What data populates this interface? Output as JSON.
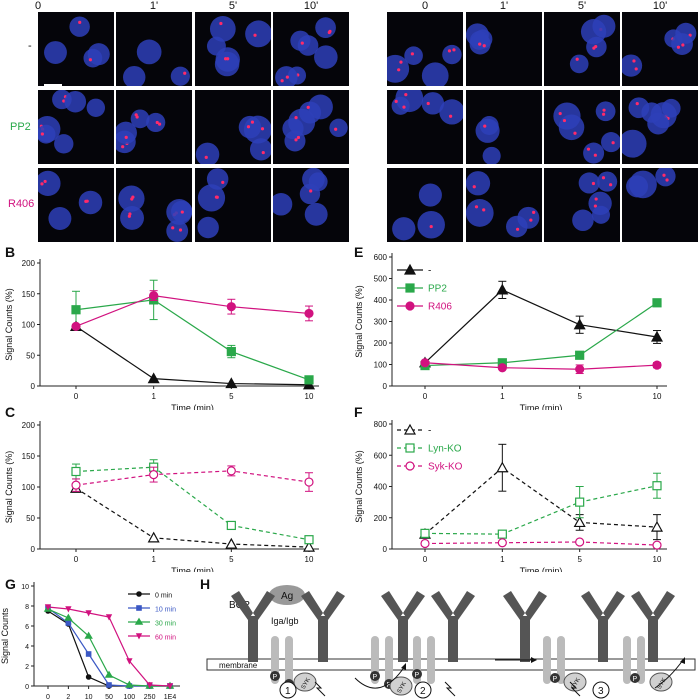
{
  "micrograph": {
    "left": {
      "columns": [
        "0",
        "1'",
        "5'",
        "10'"
      ],
      "rows": [
        {
          "label": "-",
          "color": "#111111"
        },
        {
          "label": "PP2",
          "color": "#2aa84a"
        },
        {
          "label": "R406",
          "color": "#d1127f"
        }
      ]
    },
    "right": {
      "columns": [
        "0",
        "1'",
        "5'",
        "10'"
      ]
    }
  },
  "colors": {
    "black": "#111111",
    "green": "#2aa84a",
    "magenta": "#d1127f",
    "blue": "#3b58c4"
  },
  "panels": {
    "B": "B",
    "C": "C",
    "E": "E",
    "F": "F",
    "G": "G",
    "H": "H"
  },
  "chart_data": [
    {
      "id": "B",
      "type": "line",
      "xlabel": "Time (min)",
      "ylabel": "Signal Counts (%)",
      "categories": [
        "0",
        "1",
        "5",
        "10"
      ],
      "ylim": [
        0,
        200
      ],
      "yticks": [
        "0",
        "50",
        "100",
        "150",
        "200"
      ],
      "series": [
        {
          "values": [
            97,
            12,
            4,
            2
          ],
          "color": "#111111",
          "marker": "triangle-filled",
          "dashed": false,
          "err": [
            0,
            0,
            0,
            0
          ]
        },
        {
          "values": [
            124,
            140,
            56,
            10
          ],
          "color": "#2aa84a",
          "marker": "square-filled",
          "dashed": false,
          "err": [
            30,
            32,
            10,
            3
          ]
        },
        {
          "values": [
            97,
            147,
            129,
            118
          ],
          "color": "#d1127f",
          "marker": "circle-filled",
          "dashed": false,
          "err": [
            3,
            8,
            12,
            12
          ]
        }
      ]
    },
    {
      "id": "C",
      "type": "line",
      "xlabel": "Time (min)",
      "ylabel": "Signal Counts (%)",
      "categories": [
        "0",
        "1",
        "5",
        "10"
      ],
      "ylim": [
        0,
        200
      ],
      "yticks": [
        "0",
        "50",
        "100",
        "150",
        "200"
      ],
      "series": [
        {
          "values": [
            98,
            18,
            8,
            3
          ],
          "color": "#111111",
          "marker": "triangle-open",
          "dashed": true,
          "err": [
            5,
            0,
            0,
            0
          ]
        },
        {
          "values": [
            125,
            132,
            38,
            15
          ],
          "color": "#2aa84a",
          "marker": "square-open",
          "dashed": true,
          "err": [
            12,
            12,
            0,
            0
          ]
        },
        {
          "values": [
            103,
            120,
            126,
            108
          ],
          "color": "#d1127f",
          "marker": "circle-open",
          "dashed": true,
          "err": [
            10,
            12,
            8,
            15
          ]
        }
      ]
    },
    {
      "id": "E",
      "type": "line",
      "xlabel": "Time (min)",
      "ylabel": "Signal Counts (%)",
      "categories": [
        "0",
        "1",
        "5",
        "10"
      ],
      "ylim": [
        0,
        600
      ],
      "yticks": [
        "0",
        "100",
        "200",
        "300",
        "400",
        "500",
        "600"
      ],
      "legend": [
        "-",
        "PP2",
        "R406"
      ],
      "series": [
        {
          "name": "-",
          "values": [
            108,
            447,
            285,
            228
          ],
          "color": "#111111",
          "marker": "triangle-filled",
          "dashed": false,
          "err": [
            0,
            40,
            40,
            30
          ]
        },
        {
          "name": "PP2",
          "values": [
            95,
            108,
            143,
            387
          ],
          "color": "#2aa84a",
          "marker": "square-filled",
          "dashed": false,
          "err": [
            0,
            0,
            0,
            0
          ]
        },
        {
          "name": "R406",
          "values": [
            108,
            85,
            78,
            97
          ],
          "color": "#d1127f",
          "marker": "circle-filled",
          "dashed": false,
          "err": [
            0,
            0,
            20,
            12
          ]
        }
      ]
    },
    {
      "id": "F",
      "type": "line",
      "xlabel": "Time (min)",
      "ylabel": "Signal Counts (%)",
      "categories": [
        "0",
        "1",
        "5",
        "10"
      ],
      "ylim": [
        0,
        800
      ],
      "yticks": [
        "0",
        "200",
        "400",
        "600",
        "800"
      ],
      "legend": [
        "-",
        "Lyn-KO",
        "Syk-KO"
      ],
      "series": [
        {
          "name": "-",
          "values": [
            95,
            520,
            170,
            140
          ],
          "color": "#111111",
          "marker": "triangle-open",
          "dashed": true,
          "err": [
            0,
            150,
            50,
            80
          ]
        },
        {
          "name": "Lyn-KO",
          "values": [
            100,
            95,
            300,
            405
          ],
          "color": "#2aa84a",
          "marker": "square-open",
          "dashed": true,
          "err": [
            0,
            0,
            100,
            80
          ]
        },
        {
          "name": "Syk-KO",
          "values": [
            35,
            40,
            45,
            25
          ],
          "color": "#d1127f",
          "marker": "circle-open",
          "dashed": true,
          "err": [
            0,
            0,
            0,
            0
          ]
        }
      ]
    },
    {
      "id": "G",
      "type": "line",
      "xlabel": "",
      "ylabel": "Signal Counts",
      "categories": [
        "0",
        "2",
        "10",
        "50",
        "100",
        "250",
        "1E4"
      ],
      "ylim": [
        0,
        10
      ],
      "yticks": [
        "0",
        "2",
        "4",
        "6",
        "8",
        "10"
      ],
      "legend": [
        "0 min",
        "10 min",
        "30 min",
        "60 min"
      ],
      "series": [
        {
          "name": "0 min",
          "values": [
            7.5,
            6.2,
            0.9,
            0,
            0,
            0,
            0
          ],
          "color": "#111111",
          "marker": "circle-filled"
        },
        {
          "name": "10 min",
          "values": [
            7.8,
            6.3,
            3.2,
            0.1,
            0,
            0,
            0
          ],
          "color": "#3b58c4",
          "marker": "square-filled"
        },
        {
          "name": "30 min",
          "values": [
            7.7,
            6.8,
            5.0,
            1.1,
            0.1,
            0,
            0
          ],
          "color": "#2aa84a",
          "marker": "triangle-filled"
        },
        {
          "name": "60 min",
          "values": [
            7.9,
            7.7,
            7.3,
            6.9,
            2.5,
            0.1,
            0
          ],
          "color": "#d1127f",
          "marker": "triangle-down-filled"
        }
      ]
    }
  ],
  "diagram_H": {
    "bcr": "BCR",
    "ag": "Ag",
    "igab": "Iga/Igb",
    "membrane": "membrane",
    "syk": "SYK",
    "p": "P",
    "steps": [
      "1",
      "2",
      "3"
    ]
  }
}
